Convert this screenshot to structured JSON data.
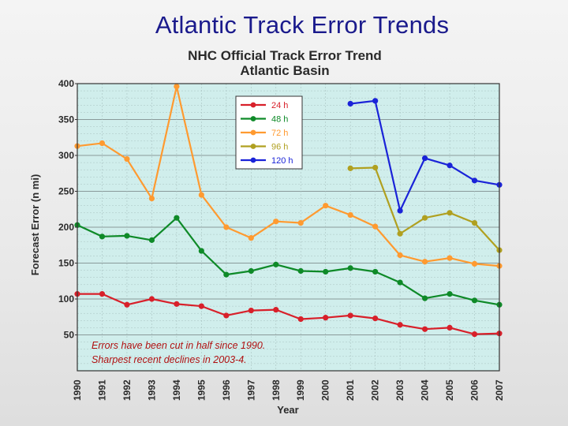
{
  "slide": {
    "title": "Atlantic Track Error Trends"
  },
  "chart_data": {
    "type": "line",
    "title": "NHC Official Track Error Trend",
    "subtitle": "Atlantic Basin",
    "xlabel": "Year",
    "ylabel": "Forecast Error (n mi)",
    "ylim": [
      0,
      400
    ],
    "yticks": [
      50,
      100,
      150,
      200,
      250,
      300,
      350,
      400
    ],
    "categories": [
      "1990",
      "1991",
      "1992",
      "1993",
      "1994",
      "1995",
      "1996",
      "1997",
      "1998",
      "1999",
      "2000",
      "2001",
      "2002",
      "2003",
      "2004",
      "2005",
      "2006",
      "2007"
    ],
    "grid": true,
    "legend_position": "top-center",
    "series": [
      {
        "name": "24 h",
        "color": "#d8202a",
        "values": [
          107,
          107,
          92,
          100,
          93,
          90,
          77,
          84,
          85,
          72,
          74,
          77,
          73,
          64,
          58,
          60,
          51,
          52
        ]
      },
      {
        "name": "48 h",
        "color": "#0e8a28",
        "values": [
          203,
          187,
          188,
          182,
          213,
          167,
          134,
          139,
          148,
          139,
          138,
          143,
          138,
          123,
          101,
          107,
          98,
          92
        ]
      },
      {
        "name": "72 h",
        "color": "#ff9a30",
        "values": [
          313,
          317,
          295,
          240,
          396,
          245,
          200,
          185,
          208,
          206,
          230,
          217,
          201,
          161,
          152,
          157,
          149,
          146
        ]
      },
      {
        "name": "96 h",
        "color": "#b0a020",
        "values": [
          null,
          null,
          null,
          null,
          null,
          null,
          null,
          null,
          null,
          null,
          null,
          282,
          283,
          191,
          213,
          220,
          206,
          168
        ]
      },
      {
        "name": "120 h",
        "color": "#1a23d8",
        "values": [
          null,
          null,
          null,
          null,
          null,
          null,
          null,
          null,
          null,
          null,
          null,
          372,
          376,
          223,
          296,
          286,
          265,
          259
        ]
      }
    ],
    "annotations": [
      "Errors have been cut in half since 1990.",
      "Sharpest recent declines in 2003-4."
    ]
  }
}
